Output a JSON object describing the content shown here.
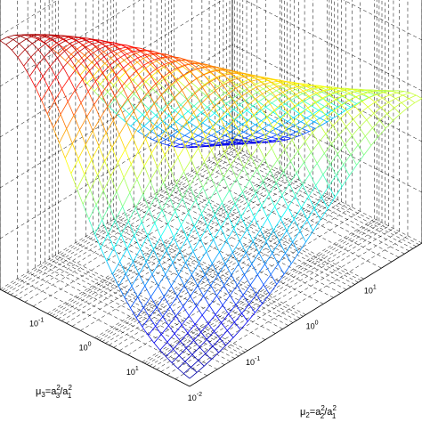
{
  "chart_data": {
    "type": "surface",
    "title": "",
    "grid": true,
    "colormap": "jet",
    "xlabel_base": "μ",
    "xlabel_sub": "3",
    "xlabel_eq": "=a",
    "xlabel_sup1": "2",
    "xlabel_sub2": "3",
    "xlabel_slash": "/a",
    "xlabel_sup2": "2",
    "xlabel_sub3": "1",
    "ylabel_base": "μ",
    "ylabel_sub": "2",
    "ylabel_eq": "=a",
    "ylabel_sup1": "2",
    "ylabel_sub2": "2",
    "ylabel_slash": "/a",
    "ylabel_sup2": "2",
    "ylabel_sub3": "1",
    "x_scale": "log",
    "y_scale": "log",
    "x_ticks": [
      {
        "base": "10",
        "exp": "1"
      },
      {
        "base": "10",
        "exp": "0"
      },
      {
        "base": "10",
        "exp": "-1"
      },
      {
        "base": "10",
        "exp": "-2"
      }
    ],
    "y_ticks": [
      {
        "base": "10",
        "exp": "-2"
      },
      {
        "base": "10",
        "exp": "-1"
      },
      {
        "base": "10",
        "exp": "0"
      },
      {
        "base": "10",
        "exp": "1"
      }
    ],
    "x_log_range": [
      -2,
      2
    ],
    "y_log_range": [
      -2,
      2
    ],
    "z_range": [
      0,
      1
    ],
    "grid_points": 33,
    "surface_description_peaks": [
      {
        "mu3_log": -2.0,
        "mu2_log": -2.0,
        "z": 0.98
      }
    ]
  }
}
